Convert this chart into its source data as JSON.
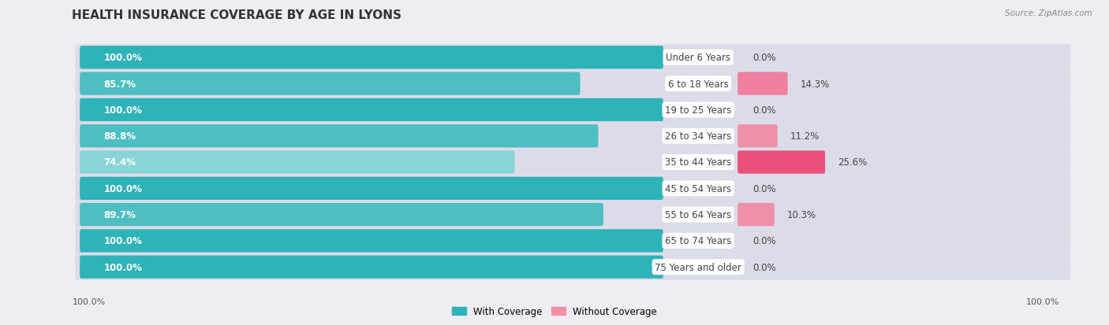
{
  "title": "HEALTH INSURANCE COVERAGE BY AGE IN LYONS",
  "source": "Source: ZipAtlas.com",
  "categories": [
    "Under 6 Years",
    "6 to 18 Years",
    "19 to 25 Years",
    "26 to 34 Years",
    "35 to 44 Years",
    "45 to 54 Years",
    "55 to 64 Years",
    "65 to 74 Years",
    "75 Years and older"
  ],
  "with_coverage": [
    100.0,
    85.7,
    100.0,
    88.8,
    74.4,
    100.0,
    89.7,
    100.0,
    100.0
  ],
  "without_coverage": [
    0.0,
    14.3,
    0.0,
    11.2,
    25.6,
    0.0,
    10.3,
    0.0,
    0.0
  ],
  "teal_colors": [
    "#2db3b8",
    "#4dbfc2",
    "#2db3b8",
    "#4dbfc2",
    "#88d5d8",
    "#2db3b8",
    "#4dbfc2",
    "#2db3b8",
    "#2db3b8"
  ],
  "pink_colors": [
    "#f8c8d8",
    "#f080a0",
    "#f8c8d8",
    "#f090a8",
    "#e8507a",
    "#f8c8d8",
    "#f090a8",
    "#f8c8d8",
    "#f8c8d8"
  ],
  "bg_color": "#ededf3",
  "row_bg_color": "#dcdce8",
  "legend_label_with": "With Coverage",
  "legend_label_without": "Without Coverage",
  "bar_height": 0.58,
  "title_fontsize": 11,
  "label_fontsize": 8.5,
  "tick_fontsize": 8,
  "source_fontsize": 7.5
}
